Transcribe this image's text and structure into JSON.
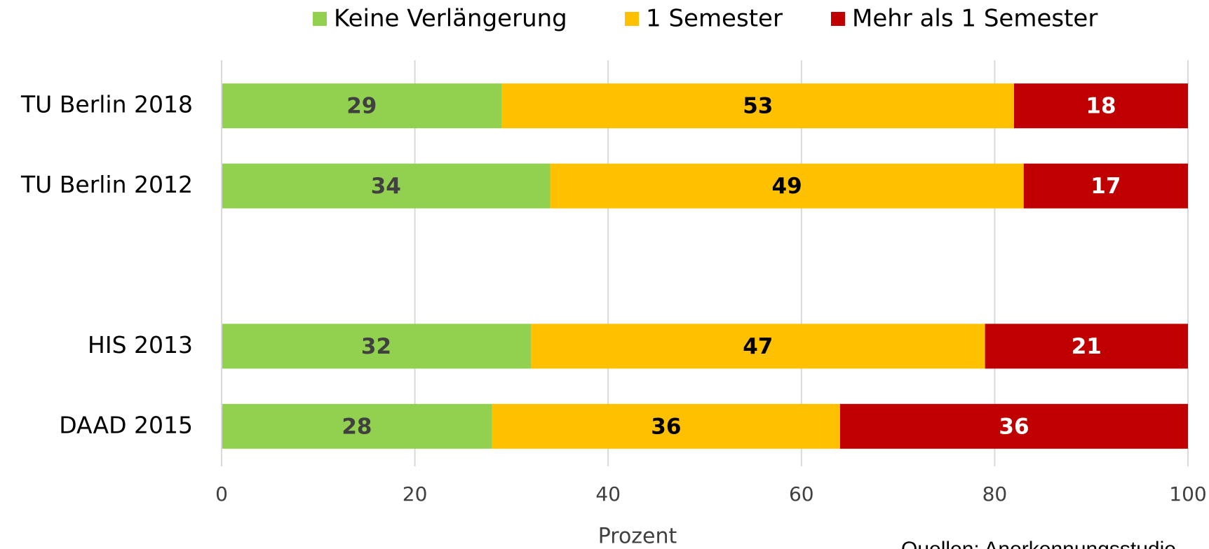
{
  "chart_data": {
    "type": "stacked-barh",
    "categories": [
      "TU Berlin 2018",
      "TU Berlin 2012",
      null,
      "HIS 2013",
      "DAAD 2015"
    ],
    "series": [
      {
        "name": "Keine Verlängerung",
        "color": "#92d050",
        "label_color": "#404040",
        "values": [
          29,
          34,
          null,
          32,
          28
        ]
      },
      {
        "name": "1 Semester",
        "color": "#ffc000",
        "label_color": "#000000",
        "values": [
          53,
          49,
          null,
          47,
          36
        ]
      },
      {
        "name": "Mehr als 1 Semester",
        "color": "#c00000",
        "label_color": "#ffffff",
        "values": [
          18,
          17,
          null,
          21,
          36
        ]
      }
    ],
    "xlim": [
      0,
      100
    ],
    "xticks": [
      0,
      20,
      40,
      60,
      80,
      100
    ],
    "grid": true,
    "legend": "top",
    "xlabel": "Prozent",
    "annotation": "Quellen: Anerkennungsstudie"
  }
}
